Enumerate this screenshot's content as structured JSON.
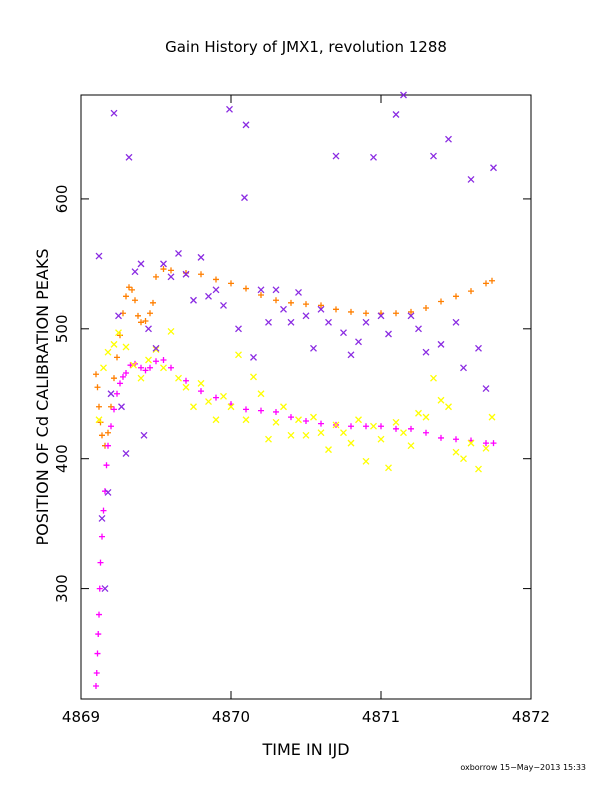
{
  "chart_data": {
    "type": "scatter",
    "title": "Gain History of JMX1, revolution 1288",
    "xlabel": "TIME IN IJD",
    "ylabel": "POSITION OF Cd CALIBRATION PEAKS",
    "xlim": [
      4869,
      4872
    ],
    "ylim": [
      215,
      680
    ],
    "xticks": [
      4869,
      4870,
      4871,
      4872
    ],
    "xtick_labels": [
      "4869",
      "4870",
      "4871",
      "4872"
    ],
    "yticks": [
      300,
      400,
      500,
      600
    ],
    "ytick_labels": [
      "300",
      "400",
      "500",
      "600"
    ],
    "grid": false,
    "footer": "oxborrow 15−May−2013 15:33",
    "series": [
      {
        "color": "#ff7f00",
        "marker": "+",
        "points": [
          [
            4869.1,
            465
          ],
          [
            4869.11,
            455
          ],
          [
            4869.12,
            440
          ],
          [
            4869.13,
            428
          ],
          [
            4869.14,
            418
          ],
          [
            4869.16,
            410
          ],
          [
            4869.18,
            420
          ],
          [
            4869.2,
            440
          ],
          [
            4869.22,
            462
          ],
          [
            4869.24,
            478
          ],
          [
            4869.26,
            495
          ],
          [
            4869.28,
            512
          ],
          [
            4869.3,
            525
          ],
          [
            4869.32,
            532
          ],
          [
            4869.34,
            530
          ],
          [
            4869.36,
            522
          ],
          [
            4869.38,
            510
          ],
          [
            4869.4,
            505
          ],
          [
            4869.43,
            506
          ],
          [
            4869.46,
            512
          ],
          [
            4869.48,
            520
          ],
          [
            4869.5,
            540
          ],
          [
            4869.55,
            546
          ],
          [
            4869.6,
            545
          ],
          [
            4869.7,
            543
          ],
          [
            4869.8,
            542
          ],
          [
            4869.9,
            538
          ],
          [
            4870.0,
            535
          ],
          [
            4870.1,
            531
          ],
          [
            4870.2,
            526
          ],
          [
            4870.3,
            522
          ],
          [
            4870.4,
            520
          ],
          [
            4870.5,
            519
          ],
          [
            4870.6,
            518
          ],
          [
            4870.7,
            515
          ],
          [
            4870.8,
            513
          ],
          [
            4870.9,
            512
          ],
          [
            4871.0,
            512
          ],
          [
            4871.1,
            512
          ],
          [
            4871.2,
            513
          ],
          [
            4871.3,
            516
          ],
          [
            4871.4,
            521
          ],
          [
            4871.5,
            525
          ],
          [
            4871.6,
            529
          ],
          [
            4871.7,
            535
          ],
          [
            4871.74,
            537
          ]
        ]
      },
      {
        "color": "#ff00ff",
        "marker": "+",
        "points": [
          [
            4869.1,
            225
          ],
          [
            4869.105,
            235
          ],
          [
            4869.11,
            250
          ],
          [
            4869.115,
            265
          ],
          [
            4869.12,
            280
          ],
          [
            4869.125,
            300
          ],
          [
            4869.13,
            320
          ],
          [
            4869.14,
            340
          ],
          [
            4869.15,
            360
          ],
          [
            4869.16,
            375
          ],
          [
            4869.17,
            395
          ],
          [
            4869.18,
            410
          ],
          [
            4869.2,
            425
          ],
          [
            4869.22,
            438
          ],
          [
            4869.24,
            450
          ],
          [
            4869.26,
            458
          ],
          [
            4869.28,
            463
          ],
          [
            4869.3,
            466
          ],
          [
            4869.33,
            472
          ],
          [
            4869.36,
            473
          ],
          [
            4869.4,
            470
          ],
          [
            4869.43,
            468
          ],
          [
            4869.46,
            470
          ],
          [
            4869.5,
            475
          ],
          [
            4869.55,
            476
          ],
          [
            4869.6,
            470
          ],
          [
            4869.7,
            460
          ],
          [
            4869.8,
            452
          ],
          [
            4869.9,
            447
          ],
          [
            4870.0,
            442
          ],
          [
            4870.1,
            438
          ],
          [
            4870.2,
            437
          ],
          [
            4870.3,
            436
          ],
          [
            4870.4,
            432
          ],
          [
            4870.5,
            429
          ],
          [
            4870.6,
            427
          ],
          [
            4870.7,
            426
          ],
          [
            4870.8,
            425
          ],
          [
            4870.9,
            425
          ],
          [
            4871.0,
            425
          ],
          [
            4871.1,
            423
          ],
          [
            4871.2,
            423
          ],
          [
            4871.3,
            420
          ],
          [
            4871.4,
            416
          ],
          [
            4871.5,
            415
          ],
          [
            4871.6,
            414
          ],
          [
            4871.7,
            412
          ],
          [
            4871.75,
            412
          ]
        ]
      },
      {
        "color": "#ffff00",
        "marker": "x",
        "points": [
          [
            4869.12,
            430
          ],
          [
            4869.15,
            470
          ],
          [
            4869.18,
            482
          ],
          [
            4869.22,
            488
          ],
          [
            4869.25,
            497
          ],
          [
            4869.3,
            486
          ],
          [
            4869.35,
            472
          ],
          [
            4869.4,
            462
          ],
          [
            4869.45,
            476
          ],
          [
            4869.5,
            484
          ],
          [
            4869.55,
            470
          ],
          [
            4869.6,
            498
          ],
          [
            4869.65,
            462
          ],
          [
            4869.7,
            455
          ],
          [
            4869.75,
            440
          ],
          [
            4869.8,
            458
          ],
          [
            4869.85,
            444
          ],
          [
            4869.9,
            430
          ],
          [
            4869.95,
            448
          ],
          [
            4870.0,
            440
          ],
          [
            4870.05,
            480
          ],
          [
            4870.1,
            430
          ],
          [
            4870.15,
            463
          ],
          [
            4870.2,
            450
          ],
          [
            4870.25,
            415
          ],
          [
            4870.3,
            428
          ],
          [
            4870.35,
            440
          ],
          [
            4870.4,
            418
          ],
          [
            4870.45,
            430
          ],
          [
            4870.5,
            418
          ],
          [
            4870.55,
            432
          ],
          [
            4870.6,
            420
          ],
          [
            4870.65,
            407
          ],
          [
            4870.7,
            426
          ],
          [
            4870.75,
            420
          ],
          [
            4870.8,
            412
          ],
          [
            4870.85,
            430
          ],
          [
            4870.9,
            398
          ],
          [
            4870.95,
            425
          ],
          [
            4871.0,
            415
          ],
          [
            4871.05,
            393
          ],
          [
            4871.1,
            428
          ],
          [
            4871.15,
            420
          ],
          [
            4871.2,
            410
          ],
          [
            4871.25,
            435
          ],
          [
            4871.3,
            432
          ],
          [
            4871.35,
            462
          ],
          [
            4871.4,
            445
          ],
          [
            4871.45,
            440
          ],
          [
            4871.5,
            405
          ],
          [
            4871.55,
            400
          ],
          [
            4871.6,
            412
          ],
          [
            4871.65,
            392
          ],
          [
            4871.7,
            408
          ],
          [
            4871.74,
            432
          ]
        ]
      },
      {
        "color": "#8a2be2",
        "marker": "x",
        "points": [
          [
            4869.12,
            556
          ],
          [
            4869.14,
            354
          ],
          [
            4869.16,
            300
          ],
          [
            4869.18,
            374
          ],
          [
            4869.2,
            450
          ],
          [
            4869.22,
            666
          ],
          [
            4869.25,
            510
          ],
          [
            4869.27,
            440
          ],
          [
            4869.3,
            404
          ],
          [
            4869.32,
            632
          ],
          [
            4869.36,
            544
          ],
          [
            4869.4,
            550
          ],
          [
            4869.42,
            418
          ],
          [
            4869.45,
            500
          ],
          [
            4869.5,
            485
          ],
          [
            4869.55,
            550
          ],
          [
            4869.6,
            540
          ],
          [
            4869.65,
            558
          ],
          [
            4869.7,
            542
          ],
          [
            4869.75,
            522
          ],
          [
            4869.8,
            555
          ],
          [
            4869.85,
            525
          ],
          [
            4869.9,
            530
          ],
          [
            4869.95,
            518
          ],
          [
            4869.99,
            669
          ],
          [
            4870.05,
            500
          ],
          [
            4870.09,
            601
          ],
          [
            4870.1,
            657
          ],
          [
            4870.15,
            478
          ],
          [
            4870.2,
            530
          ],
          [
            4870.25,
            505
          ],
          [
            4870.3,
            530
          ],
          [
            4870.35,
            515
          ],
          [
            4870.4,
            505
          ],
          [
            4870.45,
            528
          ],
          [
            4870.5,
            510
          ],
          [
            4870.55,
            485
          ],
          [
            4870.6,
            515
          ],
          [
            4870.65,
            505
          ],
          [
            4870.7,
            633
          ],
          [
            4870.75,
            497
          ],
          [
            4870.8,
            480
          ],
          [
            4870.85,
            490
          ],
          [
            4870.9,
            505
          ],
          [
            4870.95,
            632
          ],
          [
            4871.0,
            510
          ],
          [
            4871.05,
            496
          ],
          [
            4871.1,
            665
          ],
          [
            4871.15,
            680
          ],
          [
            4871.2,
            510
          ],
          [
            4871.25,
            500
          ],
          [
            4871.3,
            482
          ],
          [
            4871.35,
            633
          ],
          [
            4871.4,
            488
          ],
          [
            4871.45,
            646
          ],
          [
            4871.5,
            505
          ],
          [
            4871.55,
            470
          ],
          [
            4871.6,
            615
          ],
          [
            4871.65,
            485
          ],
          [
            4871.7,
            454
          ],
          [
            4871.75,
            624
          ]
        ]
      }
    ]
  }
}
